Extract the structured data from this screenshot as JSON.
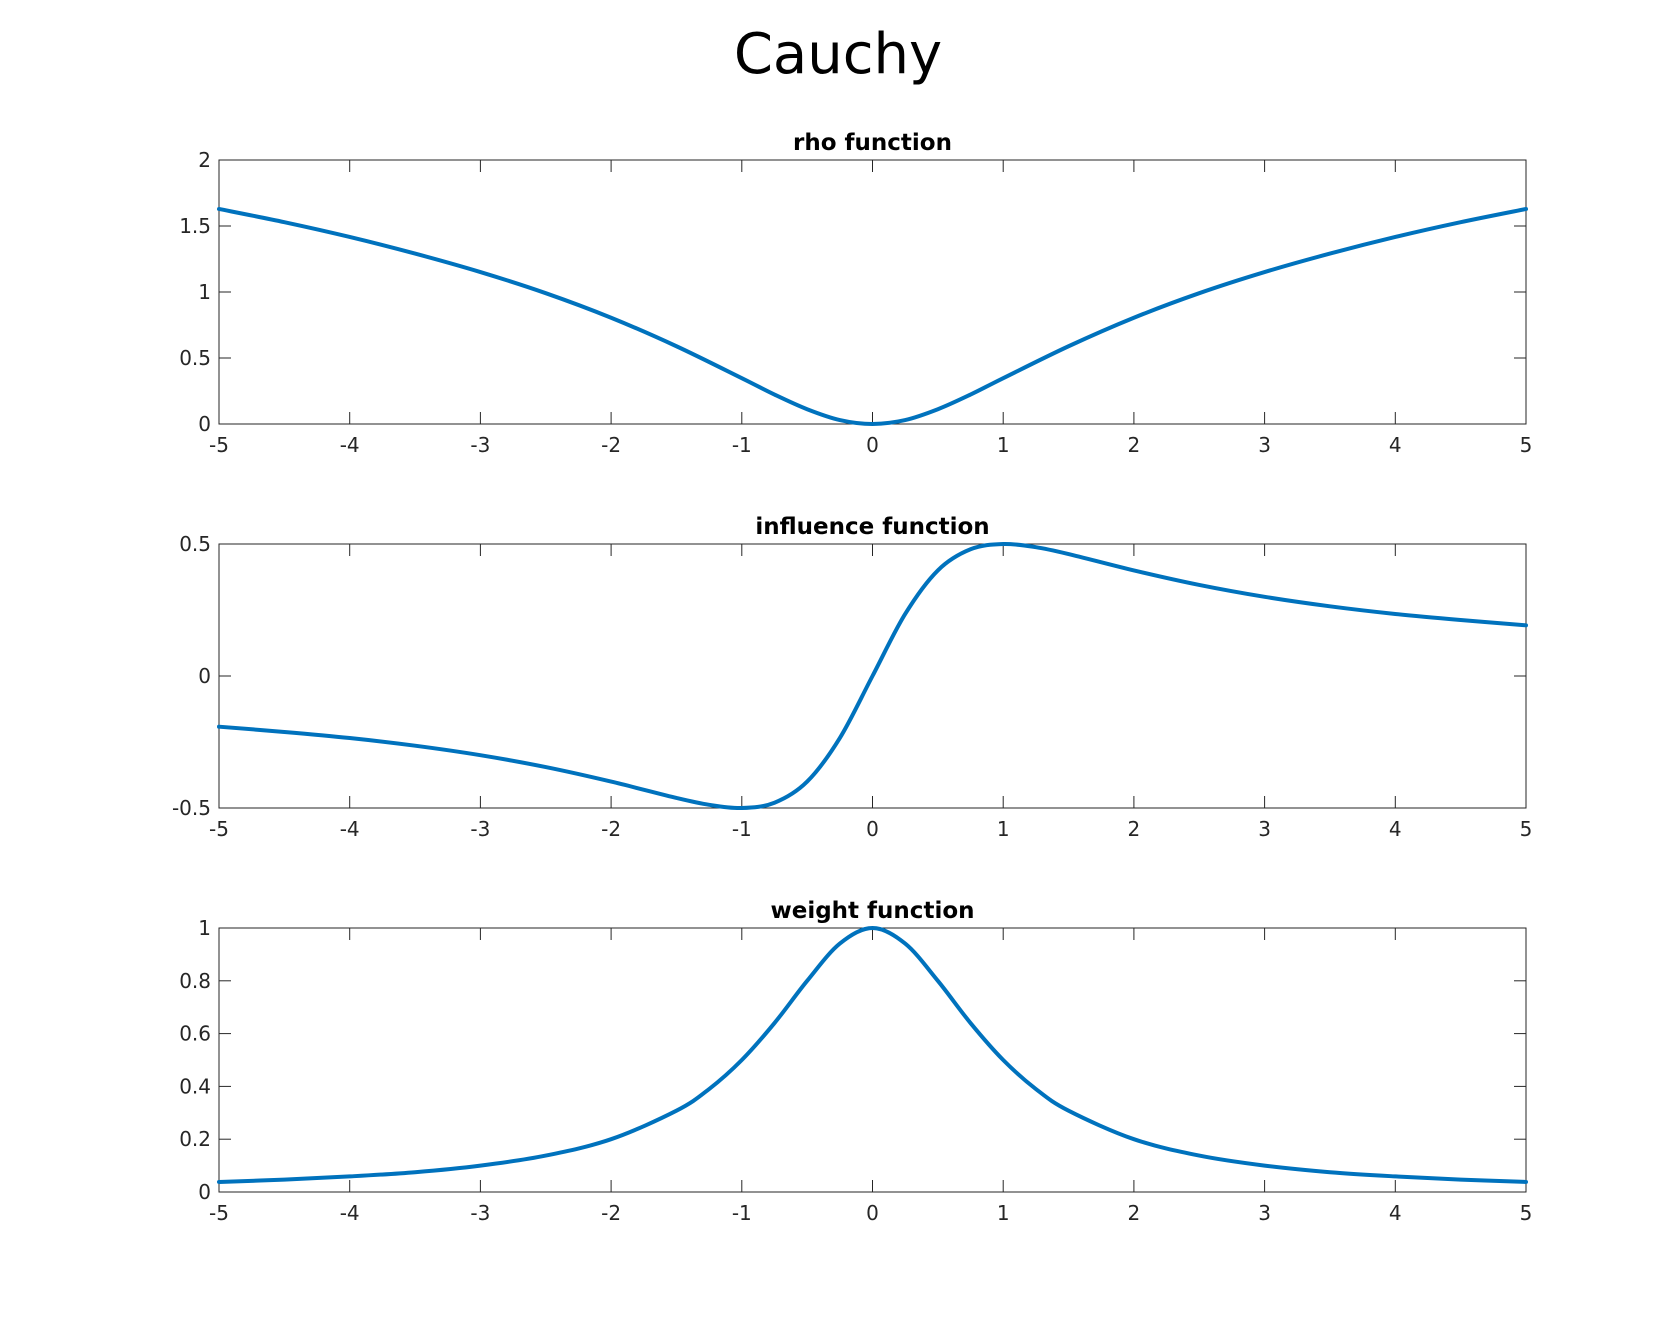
{
  "figure": {
    "title": "Cauchy",
    "line_color": "#0072BD"
  },
  "chart_data": [
    {
      "type": "line",
      "title": "rho function",
      "xlabel": "",
      "ylabel": "",
      "xlim": [
        -5,
        5
      ],
      "ylim": [
        0,
        2
      ],
      "grid": false,
      "xticks": [
        -5,
        -4,
        -3,
        -2,
        -1,
        0,
        1,
        2,
        3,
        4,
        5
      ],
      "xtick_labels": [
        "-5",
        "-4",
        "-3",
        "-2",
        "-1",
        "0",
        "1",
        "2",
        "3",
        "4",
        "5"
      ],
      "yticks": [
        0,
        0.5,
        1,
        1.5,
        2
      ],
      "ytick_labels": [
        "0",
        "0.5",
        "1",
        "1.5",
        "2"
      ],
      "series": [
        {
          "x": [
            -5,
            -4.5,
            -4,
            -3.5,
            -3,
            -2.5,
            -2,
            -1.5,
            -1,
            -0.75,
            -0.5,
            -0.25,
            0,
            0.25,
            0.5,
            0.75,
            1,
            1.5,
            2,
            2.5,
            3,
            3.5,
            4,
            4.5,
            5
          ],
          "y": [
            1.629,
            1.529,
            1.417,
            1.291,
            1.151,
            0.991,
            0.805,
            0.589,
            0.347,
            0.223,
            0.112,
            0.03,
            0,
            0.03,
            0.112,
            0.223,
            0.347,
            0.589,
            0.805,
            0.991,
            1.151,
            1.291,
            1.417,
            1.529,
            1.629
          ]
        }
      ]
    },
    {
      "type": "line",
      "title": "influence function",
      "xlabel": "",
      "ylabel": "",
      "xlim": [
        -5,
        5
      ],
      "ylim": [
        -0.5,
        0.5
      ],
      "grid": false,
      "xticks": [
        -5,
        -4,
        -3,
        -2,
        -1,
        0,
        1,
        2,
        3,
        4,
        5
      ],
      "xtick_labels": [
        "-5",
        "-4",
        "-3",
        "-2",
        "-1",
        "0",
        "1",
        "2",
        "3",
        "4",
        "5"
      ],
      "yticks": [
        -0.5,
        0,
        0.5
      ],
      "ytick_labels": [
        "-0.5",
        "0",
        "0.5"
      ],
      "series": [
        {
          "x": [
            -5,
            -4.5,
            -4,
            -3.5,
            -3,
            -2.5,
            -2,
            -1.5,
            -1.25,
            -1,
            -0.75,
            -0.5,
            -0.25,
            0,
            0.25,
            0.5,
            0.75,
            1,
            1.25,
            1.5,
            2,
            2.5,
            3,
            3.5,
            4,
            4.5,
            5
          ],
          "y": [
            -0.192,
            -0.212,
            -0.235,
            -0.264,
            -0.3,
            -0.345,
            -0.4,
            -0.462,
            -0.488,
            -0.5,
            -0.48,
            -0.4,
            -0.235,
            0,
            0.235,
            0.4,
            0.48,
            0.5,
            0.488,
            0.462,
            0.4,
            0.345,
            0.3,
            0.264,
            0.235,
            0.212,
            0.192
          ]
        }
      ]
    },
    {
      "type": "line",
      "title": "weight function",
      "xlabel": "",
      "ylabel": "",
      "xlim": [
        -5,
        5
      ],
      "ylim": [
        0,
        1
      ],
      "grid": false,
      "xticks": [
        -5,
        -4,
        -3,
        -2,
        -1,
        0,
        1,
        2,
        3,
        4,
        5
      ],
      "xtick_labels": [
        "-5",
        "-4",
        "-3",
        "-2",
        "-1",
        "0",
        "1",
        "2",
        "3",
        "4",
        "5"
      ],
      "yticks": [
        0,
        0.2,
        0.4,
        0.6,
        0.8,
        1
      ],
      "ytick_labels": [
        "0",
        "0.2",
        "0.4",
        "0.6",
        "0.8",
        "1"
      ],
      "series": [
        {
          "x": [
            -5,
            -4.5,
            -4,
            -3.5,
            -3,
            -2.5,
            -2,
            -1.5,
            -1.25,
            -1,
            -0.75,
            -0.5,
            -0.25,
            0,
            0.25,
            0.5,
            0.75,
            1,
            1.25,
            1.5,
            2,
            2.5,
            3,
            3.5,
            4,
            4.5,
            5
          ],
          "y": [
            0.038,
            0.047,
            0.059,
            0.075,
            0.1,
            0.138,
            0.2,
            0.308,
            0.39,
            0.5,
            0.64,
            0.8,
            0.941,
            1,
            0.941,
            0.8,
            0.64,
            0.5,
            0.39,
            0.308,
            0.2,
            0.138,
            0.1,
            0.075,
            0.059,
            0.047,
            0.038
          ]
        }
      ]
    }
  ]
}
